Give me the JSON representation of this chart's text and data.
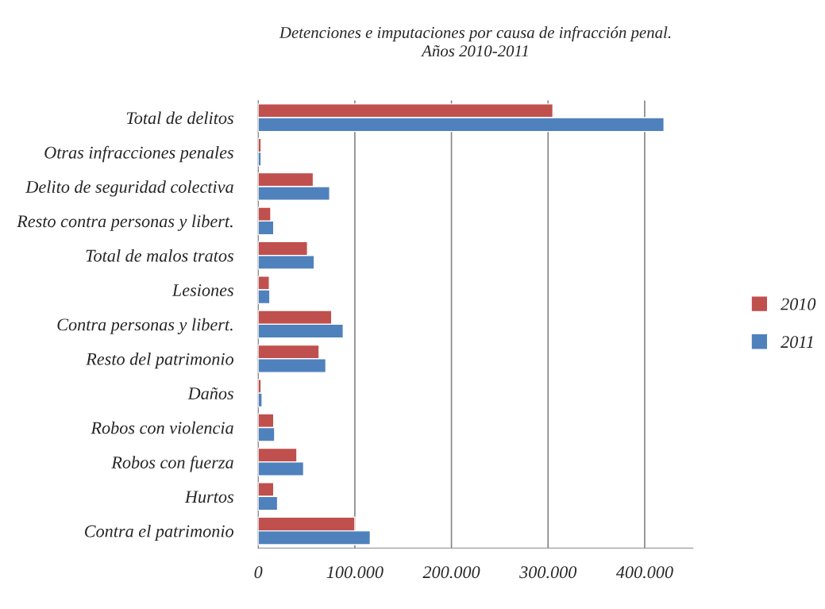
{
  "chart_data": {
    "type": "bar",
    "orientation": "horizontal",
    "title": "Detenciones e imputaciones por causa de infracción penal.\nAños 2010-2011",
    "categories": [
      "Total de delitos",
      "Otras infracciones penales",
      "Delito de seguridad colectiva",
      "Resto contra personas y libert.",
      "Total de malos tratos",
      "Lesiones",
      "Contra personas y libert.",
      "Resto del patrimonio",
      "Daños",
      "Robos con violencia",
      "Robos con fuerza",
      "Hurtos",
      "Contra el patrimonio"
    ],
    "series": [
      {
        "name": "2010",
        "color": "#c0504d",
        "values": [
          305000,
          3000,
          57000,
          13000,
          51000,
          11500,
          76000,
          63000,
          3000,
          16000,
          40000,
          16000,
          100000
        ]
      },
      {
        "name": "2011",
        "color": "#4f81bd",
        "values": [
          420000,
          3000,
          74000,
          16000,
          58000,
          12000,
          88000,
          70000,
          4000,
          17000,
          47000,
          20000,
          116000
        ]
      }
    ],
    "xlim": [
      0,
      450000
    ],
    "xticks": [
      0,
      {
        "value": 100000,
        "label": "100.000"
      },
      {
        "value": 200000,
        "label": "200.000"
      },
      {
        "value": 300000,
        "label": "300.000"
      },
      {
        "value": 400000,
        "label": "400.000"
      }
    ],
    "grid": "x",
    "legend": "right"
  }
}
